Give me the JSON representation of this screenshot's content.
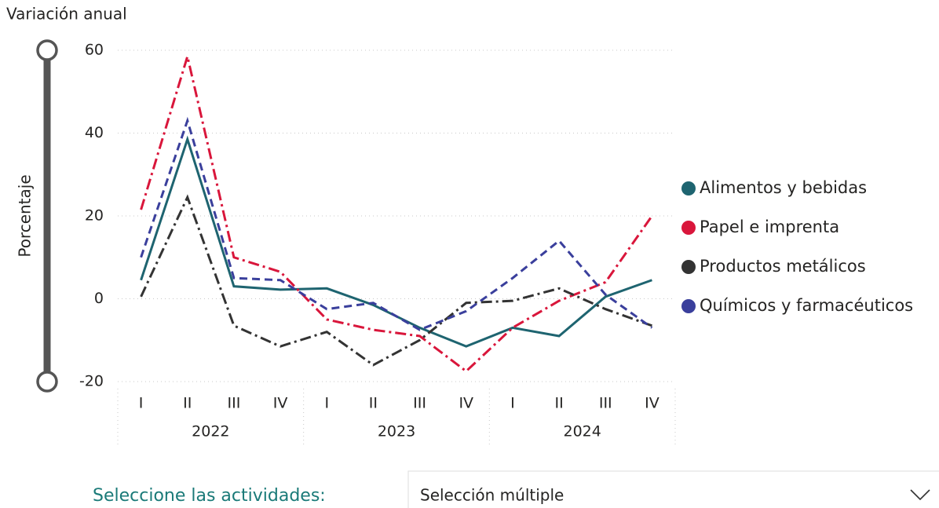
{
  "chart_data": {
    "type": "line",
    "title": "Variación anual",
    "y_label": "Porcentaje",
    "categories": [
      "I",
      "II",
      "III",
      "IV",
      "I",
      "II",
      "III",
      "IV",
      "I",
      "II",
      "III",
      "IV"
    ],
    "years": [
      "2022",
      "2023",
      "2024"
    ],
    "ylim": [
      -20,
      60
    ],
    "yticks": [
      -20,
      0,
      20,
      40,
      60
    ],
    "grid": true,
    "series": [
      {
        "name": "Alimentos y bebidas",
        "color": "#1e6470",
        "values": [
          4.5,
          38.5,
          3,
          2.2,
          2.5,
          -1.5,
          -7,
          -11.5,
          -7,
          -9,
          0.5,
          4.5
        ]
      },
      {
        "name": "Papel e imprenta",
        "color": "#d9163b",
        "values": [
          21.5,
          58.5,
          10,
          6.5,
          -5,
          -7.5,
          -9,
          -17.5,
          -7,
          -0.5,
          4,
          20
        ]
      },
      {
        "name": "Productos metálicos",
        "color": "#333333",
        "values": [
          0.5,
          24.5,
          -6.5,
          -11.5,
          -8,
          -16,
          -10,
          -1,
          -0.5,
          2.5,
          -2.5,
          -6.5
        ]
      },
      {
        "name": "Químicos y farmacéuticos",
        "color": "#3a3f9c",
        "values": [
          10,
          43,
          5,
          4.5,
          -2.5,
          -1,
          -7.5,
          -3,
          5,
          14,
          1,
          -7
        ]
      }
    ]
  },
  "slicer": {
    "label": "Seleccione las actividades:",
    "value": "Selección múltiple"
  }
}
